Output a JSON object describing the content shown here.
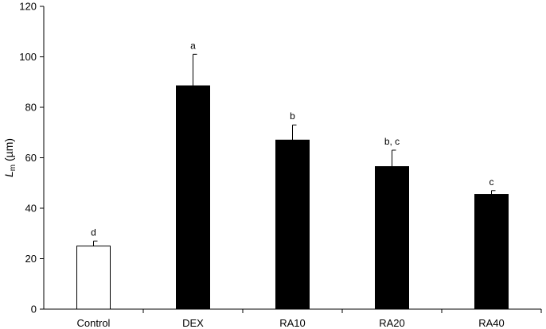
{
  "chart_data": {
    "type": "bar",
    "ylabel_main": "L",
    "ylabel_sub": "m",
    "ylabel_unit": " (µm)",
    "ylim": [
      0,
      120
    ],
    "yticks": [
      0,
      20,
      40,
      60,
      80,
      100,
      120
    ],
    "categories": [
      "Control",
      "DEX",
      "RA10",
      "RA20",
      "RA40"
    ],
    "values": [
      25,
      88.5,
      67,
      56.5,
      45.5
    ],
    "errors": [
      2,
      12.5,
      6,
      6.5,
      1.5
    ],
    "significance": [
      "d",
      "a",
      "b",
      "b, c",
      "c"
    ],
    "fill_colors": [
      "#ffffff",
      "#000000",
      "#000000",
      "#000000",
      "#000000"
    ],
    "grid": false,
    "legend": "none"
  }
}
